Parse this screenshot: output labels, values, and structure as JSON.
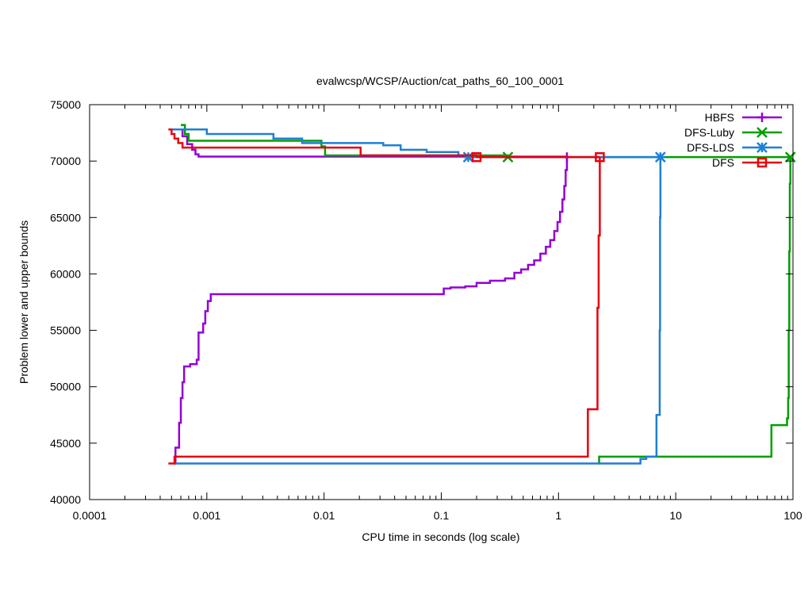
{
  "chart_data": {
    "type": "line",
    "title": "evalwcsp/WCSP/Auction/cat_paths_60_100_0001",
    "xlabel": "CPU time in seconds (log scale)",
    "ylabel": "Problem lower and upper bounds",
    "xscale": "log",
    "xlim": [
      0.0001,
      100
    ],
    "ylim": [
      40000,
      75000
    ],
    "xticks": [
      {
        "value": 0.0001,
        "label": "0.0001"
      },
      {
        "value": 0.001,
        "label": "0.001"
      },
      {
        "value": 0.01,
        "label": "0.01"
      },
      {
        "value": 0.1,
        "label": "0.1"
      },
      {
        "value": 1,
        "label": "1"
      },
      {
        "value": 10,
        "label": "10"
      },
      {
        "value": 100,
        "label": "100"
      }
    ],
    "yticks": [
      {
        "value": 40000,
        "label": "40000"
      },
      {
        "value": 45000,
        "label": "45000"
      },
      {
        "value": 50000,
        "label": "50000"
      },
      {
        "value": 55000,
        "label": "55000"
      },
      {
        "value": 60000,
        "label": "60000"
      },
      {
        "value": 65000,
        "label": "65000"
      },
      {
        "value": 70000,
        "label": "70000"
      },
      {
        "value": 75000,
        "label": "75000"
      }
    ],
    "grid": false,
    "legend_position": "top-right",
    "series": [
      {
        "name": "HBFS",
        "color": "#9400d3",
        "marker": "plus",
        "marker_points": [
          [
            1.18,
            70350
          ]
        ],
        "lower": [
          [
            0.00053,
            43200
          ],
          [
            0.00054,
            44600
          ],
          [
            0.00058,
            46800
          ],
          [
            0.0006,
            49000
          ],
          [
            0.00062,
            50400
          ],
          [
            0.00064,
            51800
          ],
          [
            0.00072,
            52000
          ],
          [
            0.00082,
            52400
          ],
          [
            0.00085,
            54800
          ],
          [
            0.00093,
            55600
          ],
          [
            0.00097,
            56700
          ],
          [
            0.00102,
            57600
          ],
          [
            0.00108,
            58200
          ],
          [
            0.1,
            58200
          ],
          [
            0.105,
            58700
          ],
          [
            0.12,
            58800
          ],
          [
            0.16,
            58900
          ],
          [
            0.2,
            59200
          ],
          [
            0.26,
            59400
          ],
          [
            0.35,
            59600
          ],
          [
            0.42,
            60100
          ],
          [
            0.48,
            60400
          ],
          [
            0.55,
            60800
          ],
          [
            0.62,
            61200
          ],
          [
            0.7,
            61800
          ],
          [
            0.78,
            62400
          ],
          [
            0.85,
            63000
          ],
          [
            0.92,
            63800
          ],
          [
            0.98,
            64600
          ],
          [
            1.03,
            65500
          ],
          [
            1.08,
            66600
          ],
          [
            1.12,
            67800
          ],
          [
            1.15,
            69200
          ],
          [
            1.18,
            70350
          ]
        ],
        "upper": [
          [
            0.0006,
            72800
          ],
          [
            0.00062,
            72200
          ],
          [
            0.00068,
            71500
          ],
          [
            0.00075,
            71000
          ],
          [
            0.0008,
            70600
          ],
          [
            0.00085,
            70400
          ],
          [
            1.18,
            70350
          ]
        ]
      },
      {
        "name": "DFS-Luby",
        "color": "#009e00",
        "marker": "x",
        "marker_points": [
          [
            0.37,
            70350
          ],
          [
            95,
            70350
          ]
        ],
        "lower": [
          [
            2.2,
            43200
          ],
          [
            2.22,
            43800
          ],
          [
            65,
            43800
          ],
          [
            65.5,
            46600
          ],
          [
            88,
            46600
          ],
          [
            89,
            47200
          ],
          [
            91,
            49000
          ],
          [
            92,
            55000
          ],
          [
            93,
            62000
          ],
          [
            94,
            68000
          ],
          [
            95,
            70350
          ]
        ],
        "upper": [
          [
            0.0006,
            73200
          ],
          [
            0.00065,
            72400
          ],
          [
            0.0007,
            71800
          ],
          [
            0.0055,
            71800
          ],
          [
            0.0095,
            71300
          ],
          [
            0.0102,
            70500
          ],
          [
            0.02,
            70500
          ],
          [
            0.37,
            70350
          ],
          [
            95,
            70350
          ]
        ]
      },
      {
        "name": "DFS-LDS",
        "color": "#1e7fd6",
        "marker": "asterisk",
        "marker_points": [
          [
            0.17,
            70350
          ],
          [
            7.4,
            70350
          ]
        ],
        "lower": [
          [
            0.00052,
            43200
          ],
          [
            4.9,
            43200
          ],
          [
            5.0,
            43600
          ],
          [
            5.6,
            43800
          ],
          [
            6.8,
            43800
          ],
          [
            6.85,
            47500
          ],
          [
            7.25,
            47500
          ],
          [
            7.3,
            55000
          ],
          [
            7.35,
            65000
          ],
          [
            7.4,
            70350
          ]
        ],
        "upper": [
          [
            0.00048,
            72800
          ],
          [
            0.00095,
            72800
          ],
          [
            0.001,
            72400
          ],
          [
            0.0036,
            72400
          ],
          [
            0.0037,
            72000
          ],
          [
            0.0062,
            72000
          ],
          [
            0.0065,
            71600
          ],
          [
            0.03,
            71600
          ],
          [
            0.032,
            71400
          ],
          [
            0.04,
            71400
          ],
          [
            0.045,
            71000
          ],
          [
            0.07,
            71000
          ],
          [
            0.075,
            70800
          ],
          [
            0.12,
            70800
          ],
          [
            0.14,
            70500
          ],
          [
            0.17,
            70350
          ],
          [
            7.4,
            70350
          ]
        ]
      },
      {
        "name": "DFS",
        "color": "#e8000b",
        "marker": "square",
        "marker_points": [
          [
            0.2,
            70350
          ],
          [
            2.25,
            70350
          ]
        ],
        "lower": [
          [
            0.00047,
            43200
          ],
          [
            0.00052,
            43200
          ],
          [
            0.00053,
            43800
          ],
          [
            1.75,
            43800
          ],
          [
            1.78,
            48000
          ],
          [
            2.12,
            48000
          ],
          [
            2.15,
            57000
          ],
          [
            2.2,
            63400
          ],
          [
            2.25,
            70350
          ]
        ],
        "upper": [
          [
            0.00047,
            72800
          ],
          [
            0.0005,
            72400
          ],
          [
            0.00053,
            72000
          ],
          [
            0.00057,
            71600
          ],
          [
            0.00062,
            71200
          ],
          [
            0.0195,
            71200
          ],
          [
            0.0205,
            70500
          ],
          [
            0.2,
            70350
          ],
          [
            2.25,
            70350
          ]
        ]
      }
    ]
  }
}
